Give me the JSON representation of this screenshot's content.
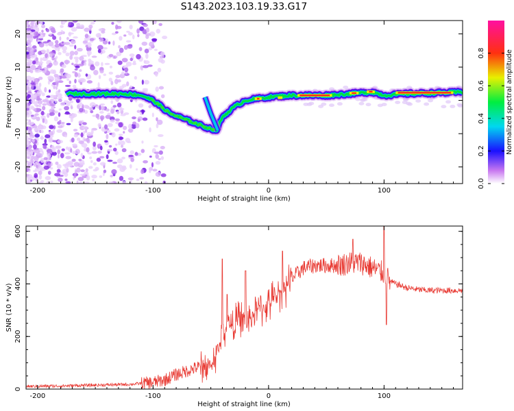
{
  "title": "S143.2023.103.19.33.G17",
  "chart_data": [
    {
      "type": "heatmap",
      "xlabel": "Height of straight line (km)",
      "ylabel": "Frequency (Hz)",
      "xlim": [
        -210,
        168
      ],
      "ylim": [
        -25,
        24
      ],
      "xticks": [
        -200,
        -100,
        0,
        100
      ],
      "yticks": [
        -20,
        -10,
        0,
        10,
        20
      ],
      "colorbar": {
        "label": "Normalized spectral amplitude",
        "ticks": [
          "0.0",
          "0.2",
          "0.4",
          "0.6",
          "0.8"
        ],
        "range": [
          0,
          1
        ]
      },
      "ridge": [
        {
          "x": -175,
          "y": 2
        },
        {
          "x": -150,
          "y": 2
        },
        {
          "x": -125,
          "y": 2
        },
        {
          "x": -110,
          "y": 1.5
        },
        {
          "x": -100,
          "y": 0
        },
        {
          "x": -85,
          "y": -4
        },
        {
          "x": -70,
          "y": -6
        },
        {
          "x": -55,
          "y": -8
        },
        {
          "x": -45,
          "y": -9
        },
        {
          "x": -40,
          "y": -5
        },
        {
          "x": -30,
          "y": -2
        },
        {
          "x": -20,
          "y": 0
        },
        {
          "x": -10,
          "y": 0.5
        },
        {
          "x": 0,
          "y": 1
        },
        {
          "x": 20,
          "y": 1.5
        },
        {
          "x": 50,
          "y": 1.5
        },
        {
          "x": 70,
          "y": 2
        },
        {
          "x": 90,
          "y": 2.5
        },
        {
          "x": 100,
          "y": 1.5
        },
        {
          "x": 120,
          "y": 2
        },
        {
          "x": 168,
          "y": 2.5
        }
      ]
    },
    {
      "type": "line",
      "xlabel": "Height of straight line (km)",
      "ylabel": "SNR (10 * v/v)",
      "xlim": [
        -210,
        168
      ],
      "ylim": [
        0,
        620
      ],
      "xticks": [
        -200,
        -100,
        0,
        100
      ],
      "yticks": [
        0,
        200,
        400,
        600
      ],
      "color": "#e83a33",
      "series": [
        {
          "x": [
            -210,
            -180,
            -150,
            -120,
            -100,
            -90,
            -80,
            -70,
            -60,
            -50,
            -45,
            -40,
            -35,
            -30,
            -25,
            -20,
            -10,
            0,
            10,
            20,
            30,
            40,
            50,
            60,
            70,
            80,
            90,
            95,
            100,
            105,
            110,
            120,
            130,
            140,
            150,
            168
          ],
          "values": [
            10,
            12,
            15,
            18,
            25,
            35,
            55,
            70,
            85,
            90,
            130,
            200,
            250,
            240,
            280,
            250,
            300,
            320,
            370,
            420,
            460,
            470,
            470,
            470,
            480,
            480,
            460,
            450,
            440,
            410,
            400,
            385,
            378,
            375,
            375,
            375
          ]
        }
      ],
      "spikes": [
        {
          "x": -40,
          "y": 495
        },
        {
          "x": -36,
          "y": 360
        },
        {
          "x": -20,
          "y": 450
        },
        {
          "x": 12,
          "y": 525
        },
        {
          "x": 73,
          "y": 570
        },
        {
          "x": 100,
          "y": 620
        },
        {
          "x": 102,
          "y": 245
        }
      ]
    }
  ]
}
